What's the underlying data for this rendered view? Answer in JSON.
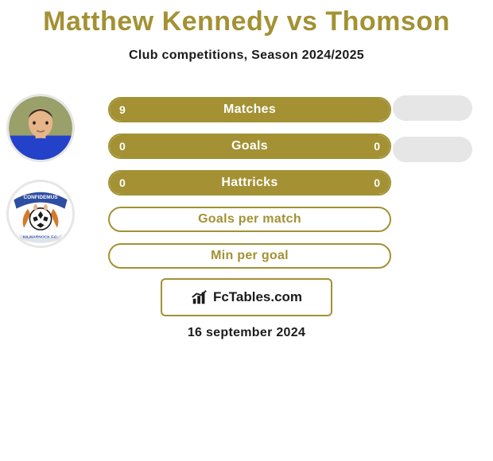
{
  "background_color": "#ffffff",
  "title": {
    "text": "Matthew Kennedy vs Thomson",
    "color": "#a39134",
    "fontsize": 34
  },
  "subtitle": {
    "text": "Club competitions, Season 2024/2025",
    "color": "#1b1b1b",
    "fontsize": 16
  },
  "avatars": {
    "border_color": "#e6e6e6",
    "player": {
      "jersey_color": "#2441c9",
      "skin_color": "#e6b589",
      "hair_color": "#3a2a20"
    },
    "club": {
      "bg_color": "#ffffff",
      "banner_color": "#2e4ea1",
      "banner_text": "CONFIDEMUS",
      "text_color": "#ffffff",
      "ball_color": "#1b1b1b",
      "mascots_color": "#d47a2a",
      "ribbon_text": "KILMARNOCK F.C.",
      "ribbon_bg": "#dfe3ea",
      "ribbon_text_color": "#2e4ea1"
    }
  },
  "bars": {
    "border_color": "#a39134",
    "fill_color": "#a39134",
    "label_color": "#ffffff",
    "empty_label_color": "#a39134",
    "rows": [
      {
        "label": "Matches",
        "left": "9",
        "right": "",
        "left_pct": 100,
        "right_pct": 0
      },
      {
        "label": "Goals",
        "left": "0",
        "right": "0",
        "left_pct": 100,
        "right_pct": 0
      },
      {
        "label": "Hattricks",
        "left": "0",
        "right": "0",
        "left_pct": 100,
        "right_pct": 0
      },
      {
        "label": "Goals per match",
        "left": "",
        "right": "",
        "left_pct": 0,
        "right_pct": 0
      },
      {
        "label": "Min per goal",
        "left": "",
        "right": "",
        "left_pct": 0,
        "right_pct": 0
      }
    ]
  },
  "pills": {
    "color": "#e6e6e6",
    "count": 2
  },
  "logo": {
    "border_color": "#a39134",
    "text": "FcTables.com",
    "text_color": "#1b1b1b",
    "icon_color": "#1b1b1b"
  },
  "date": {
    "text": "16 september 2024",
    "color": "#1b1b1b"
  }
}
